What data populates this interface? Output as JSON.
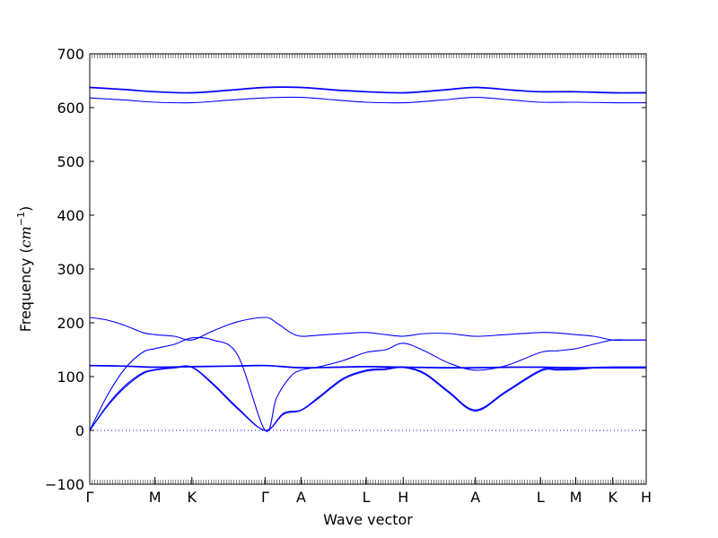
{
  "chart_data": {
    "type": "line",
    "title": "",
    "xlabel": "Wave vector",
    "ylabel": "Frequency (cm⁻¹)",
    "ylabel_parts": {
      "prefix": "Frequency (",
      "math": "cm",
      "sup": "−1",
      "suffix": ")"
    },
    "ylim": [
      -100,
      700
    ],
    "yticks": [
      -100,
      0,
      100,
      200,
      300,
      400,
      500,
      600,
      700
    ],
    "xlim": [
      0,
      15.8
    ],
    "high_symmetry_points": [
      {
        "label": "Γ",
        "x": 0
      },
      {
        "label": "M",
        "x": 1.85
      },
      {
        "label": "K",
        "x": 2.9
      },
      {
        "label": "Γ",
        "x": 4.98
      },
      {
        "label": "A",
        "x": 6
      },
      {
        "label": "L",
        "x": 7.85
      },
      {
        "label": "H",
        "x": 8.9
      },
      {
        "label": "A",
        "x": 10.95
      },
      {
        "label": "L",
        "x": 12.8
      },
      {
        "label": "M",
        "x": 13.8
      },
      {
        "label": "K",
        "x": 14.85
      },
      {
        "label": "H",
        "x": 15.8
      }
    ],
    "grid": false,
    "zero_line": {
      "y": 0,
      "style": "dotted"
    },
    "line_color": "#0000ff",
    "series": [
      {
        "x": [
          0,
          0.5,
          1.0,
          1.5,
          1.85,
          2.4,
          2.9,
          3.5,
          4.2,
          4.98,
          5.5,
          6.0,
          6.5,
          7.2,
          7.85,
          8.4,
          8.9,
          9.5,
          10.2,
          10.95,
          11.8,
          12.8,
          13.3,
          13.8,
          14.3,
          14.85,
          15.3,
          15.8
        ],
        "values": [
          0,
          45,
          80,
          105,
          112,
          116,
          117,
          85,
          40,
          0,
          30,
          37,
          60,
          95,
          110,
          113,
          117,
          105,
          70,
          36,
          70,
          110,
          112,
          113,
          116,
          117,
          117,
          117
        ]
      },
      {
        "x": [
          0,
          0.5,
          1.0,
          1.5,
          1.85,
          2.4,
          2.9,
          3.5,
          4.2,
          4.98,
          5.5,
          6.0,
          6.5,
          7.2,
          7.85,
          8.4,
          8.9,
          9.5,
          10.2,
          10.95,
          11.8,
          12.8,
          13.3,
          13.8,
          14.3,
          14.85,
          15.3,
          15.8
        ],
        "values": [
          0,
          47,
          83,
          107,
          113,
          117,
          118,
          87,
          42,
          0,
          32,
          38,
          62,
          97,
          112,
          115,
          118,
          107,
          72,
          38,
          72,
          112,
          114,
          115,
          117,
          118,
          118,
          118
        ]
      },
      {
        "x": [
          0,
          0.5,
          1.0,
          1.5,
          1.85,
          2.4,
          2.9,
          3.5,
          4.2,
          4.98,
          5.3,
          5.7,
          6.0,
          6.5,
          7.2,
          7.85,
          8.4,
          8.9,
          9.5,
          10.2,
          10.95,
          11.8,
          12.8,
          13.3,
          13.8,
          14.3,
          14.85,
          15.3,
          15.8
        ],
        "values": [
          0,
          65,
          115,
          145,
          152,
          160,
          172,
          168,
          140,
          0,
          60,
          100,
          112,
          118,
          130,
          145,
          150,
          162,
          148,
          125,
          112,
          120,
          145,
          148,
          152,
          160,
          168,
          168,
          168
        ]
      },
      {
        "x": [
          0,
          0.5,
          1.0,
          1.5,
          1.85,
          2.4,
          2.9,
          3.5,
          4.2,
          4.98,
          5.3,
          5.7,
          6.0,
          6.5,
          7.2,
          7.85,
          8.4,
          8.9,
          9.5,
          10.2,
          10.95,
          11.8,
          12.8,
          13.3,
          13.8,
          14.3,
          14.85,
          15.3,
          15.8
        ],
        "values": [
          210,
          205,
          195,
          182,
          178,
          175,
          168,
          185,
          202,
          210,
          200,
          182,
          175,
          177,
          180,
          182,
          178,
          175,
          180,
          180,
          175,
          178,
          182,
          181,
          178,
          175,
          168,
          168,
          168
        ]
      },
      {
        "x": [
          0,
          1.0,
          1.85,
          2.9,
          4.0,
          4.98,
          6.0,
          7.0,
          7.85,
          8.9,
          10.0,
          10.95,
          12.0,
          12.8,
          13.8,
          14.85,
          15.8
        ],
        "values": [
          120,
          119,
          117,
          118,
          119,
          120,
          116,
          117,
          118,
          117,
          116,
          116,
          117,
          117,
          116,
          116,
          116
        ]
      },
      {
        "x": [
          0,
          1.0,
          1.85,
          2.9,
          4.0,
          4.98,
          6.0,
          7.0,
          7.85,
          8.9,
          10.0,
          10.95,
          12.0,
          12.8,
          13.8,
          14.85,
          15.8
        ],
        "values": [
          121,
          120,
          118,
          119,
          120,
          121,
          117,
          118,
          119,
          118,
          117,
          117,
          118,
          118,
          117,
          117,
          117
        ]
      },
      {
        "x": [
          0,
          1.0,
          1.85,
          2.9,
          4.0,
          4.98,
          6.0,
          7.0,
          7.85,
          8.9,
          10.0,
          10.95,
          12.0,
          12.8,
          13.8,
          14.85,
          15.8
        ],
        "values": [
          618,
          614,
          610,
          609,
          614,
          618,
          619,
          614,
          610,
          609,
          614,
          619,
          614,
          610,
          610,
          609,
          609
        ]
      },
      {
        "x": [
          0,
          1.0,
          1.85,
          2.9,
          4.0,
          4.98,
          6.0,
          7.0,
          7.85,
          8.9,
          10.0,
          10.95,
          12.0,
          12.8,
          13.8,
          14.85,
          15.8
        ],
        "values": [
          637,
          633,
          629,
          627,
          632,
          637,
          637,
          632,
          629,
          627,
          632,
          637,
          632,
          629,
          629,
          627,
          627
        ]
      },
      {
        "x": [
          0,
          1.0,
          1.85,
          2.9,
          4.0,
          4.98,
          6.0,
          7.0,
          7.85,
          8.9,
          10.0,
          10.95,
          12.0,
          12.8,
          13.8,
          14.85,
          15.8
        ],
        "values": [
          638,
          634,
          630,
          628,
          633,
          638,
          638,
          633,
          630,
          628,
          633,
          638,
          633,
          630,
          630,
          628,
          628
        ]
      }
    ]
  }
}
